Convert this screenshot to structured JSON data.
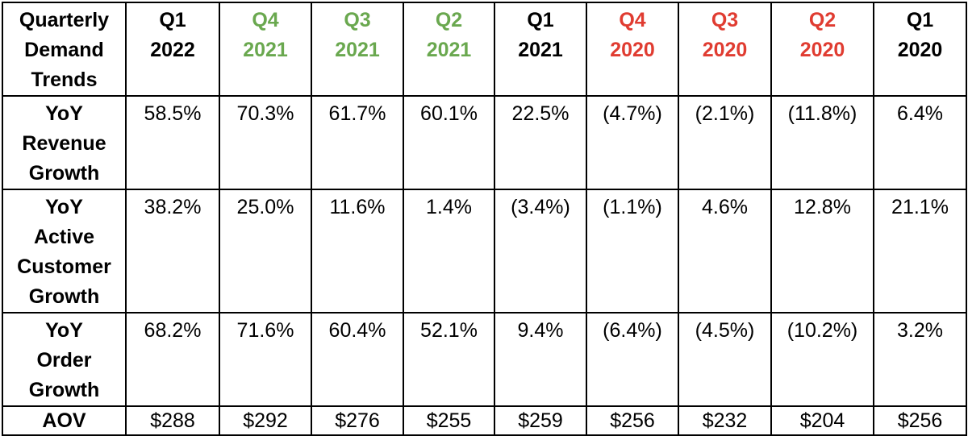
{
  "colors": {
    "current": "#000000",
    "year_2021": "#6aa84f",
    "year_2020": "#e03c31"
  },
  "table": {
    "corner": [
      "Quarterly",
      "Demand",
      "Trends"
    ],
    "columns": [
      {
        "quarter": "Q1",
        "year": "2022",
        "color": "black"
      },
      {
        "quarter": "Q4",
        "year": "2021",
        "color": "green"
      },
      {
        "quarter": "Q3",
        "year": "2021",
        "color": "green"
      },
      {
        "quarter": "Q2",
        "year": "2021",
        "color": "green"
      },
      {
        "quarter": "Q1",
        "year": "2021",
        "color": "black"
      },
      {
        "quarter": "Q4",
        "year": "2020",
        "color": "red"
      },
      {
        "quarter": "Q3",
        "year": "2020",
        "color": "red"
      },
      {
        "quarter": "Q2",
        "year": "2020",
        "color": "red"
      },
      {
        "quarter": "Q1",
        "year": "2020",
        "color": "black"
      }
    ],
    "rows": [
      {
        "label": [
          "YoY",
          "Revenue",
          "Growth"
        ],
        "values": [
          "58.5%",
          "70.3%",
          "61.7%",
          "60.1%",
          "22.5%",
          "(4.7%)",
          "(2.1%)",
          "(11.8%)",
          "6.4%"
        ]
      },
      {
        "label": [
          "YoY",
          "Active",
          "Customer",
          "Growth"
        ],
        "values": [
          "38.2%",
          "25.0%",
          "11.6%",
          "1.4%",
          "(3.4%)",
          "(1.1%)",
          "4.6%",
          "12.8%",
          "21.1%"
        ]
      },
      {
        "label": [
          "YoY",
          "Order",
          "Growth"
        ],
        "values": [
          "68.2%",
          "71.6%",
          "60.4%",
          "52.1%",
          "9.4%",
          "(6.4%)",
          "(4.5%)",
          "(10.2%)",
          "3.2%"
        ]
      },
      {
        "label": [
          "AOV"
        ],
        "values": [
          "$288",
          "$292",
          "$276",
          "$255",
          "$259",
          "$256",
          "$232",
          "$204",
          "$256"
        ]
      }
    ]
  }
}
